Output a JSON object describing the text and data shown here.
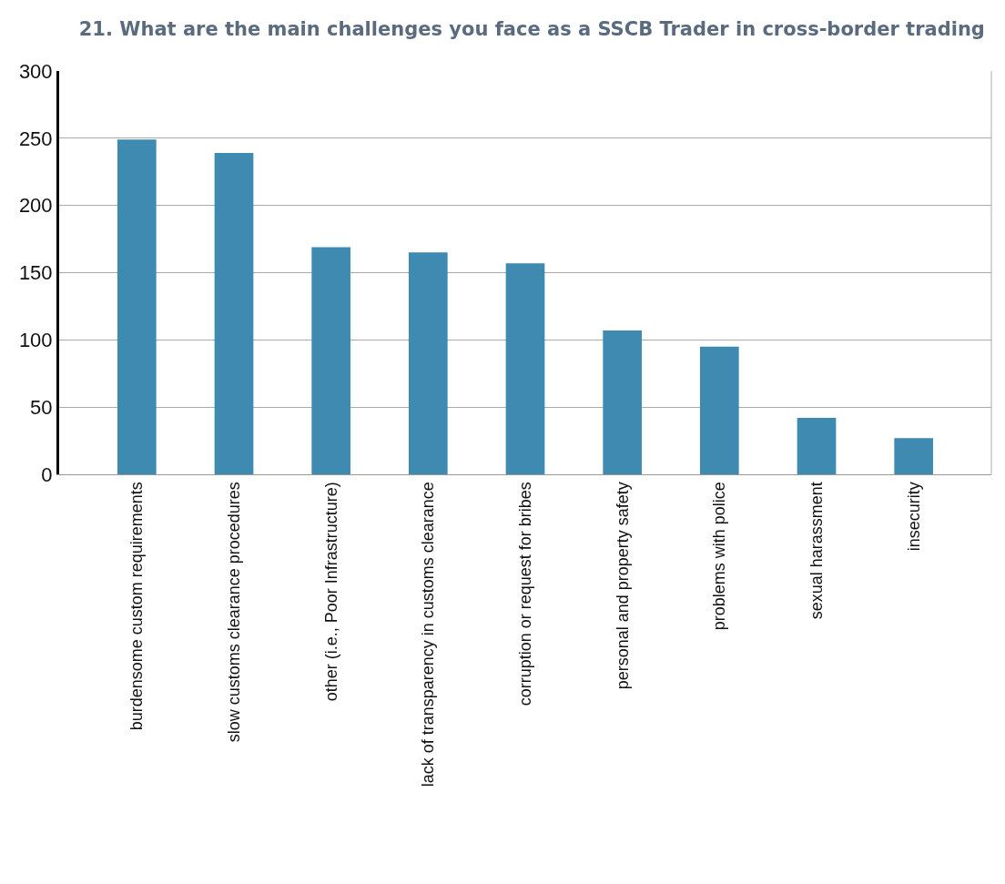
{
  "chart_data": {
    "type": "bar",
    "title": "21. What are the main challenges you face as a SSCB Trader in cross-border trading",
    "categories": [
      "burdensome custom requirements",
      "slow customs clearance procedures",
      "other (i.e., Poor Infrastructure)",
      "lack of transparency in customs clearance",
      "corruption or request for bribes",
      "personal and property safety",
      "problems with police",
      "sexual harassment",
      "insecurity"
    ],
    "values": [
      249,
      239,
      169,
      165,
      157,
      107,
      95,
      42,
      27
    ],
    "color": "#3e8ab1",
    "ylim": [
      0,
      300
    ],
    "yticks": [
      0,
      50,
      100,
      150,
      200,
      250,
      300
    ],
    "grid": "y"
  }
}
